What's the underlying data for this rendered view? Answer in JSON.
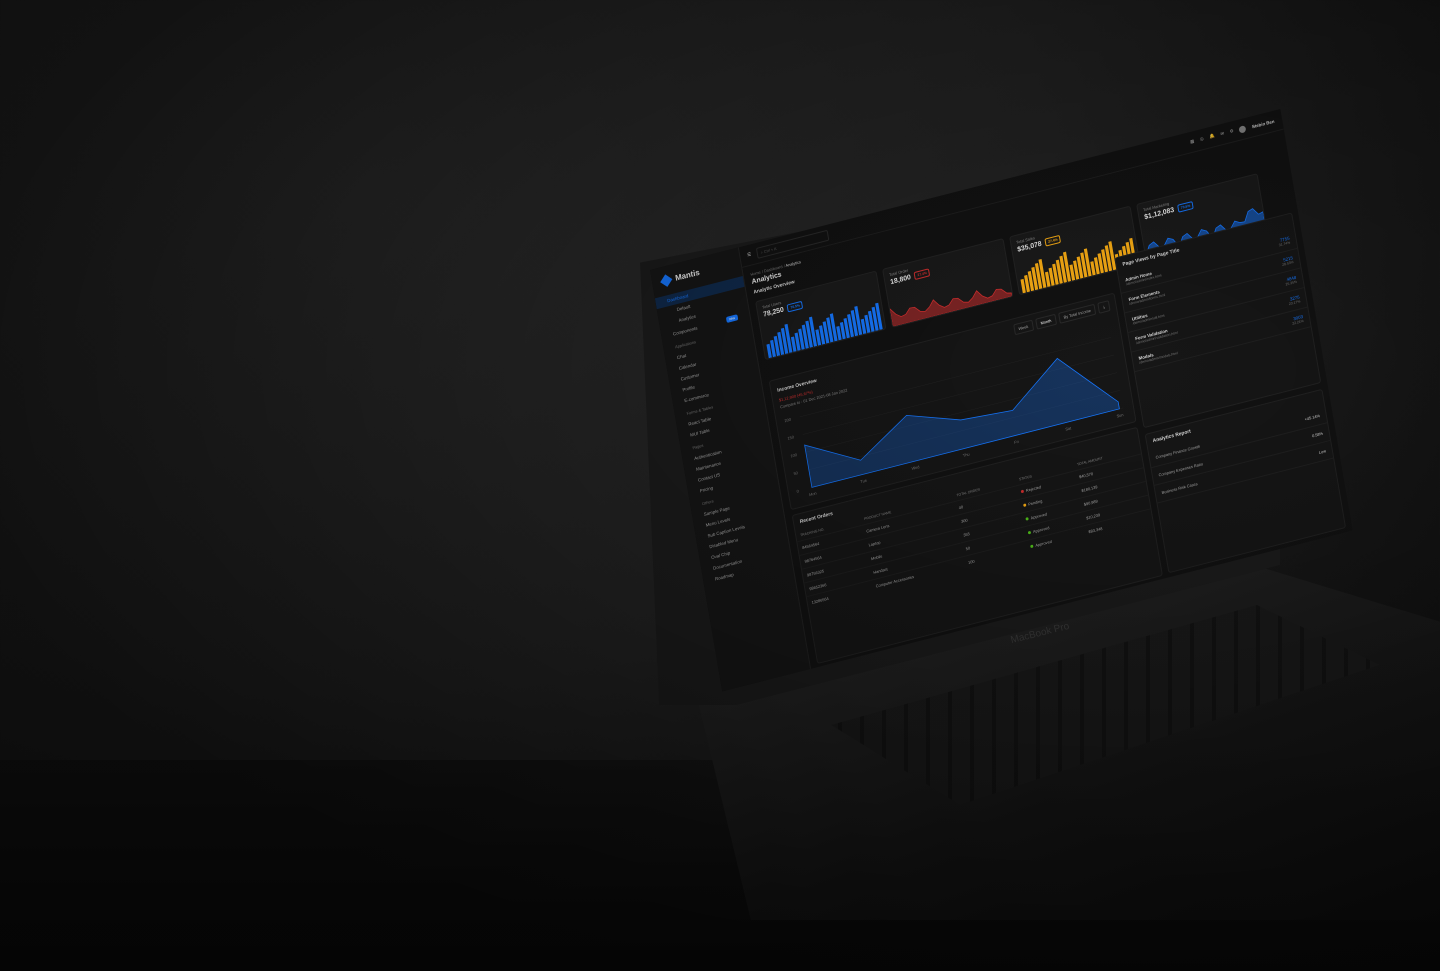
{
  "device": {
    "label": "MacBook Pro"
  },
  "sidebar": {
    "brand": "Mantis",
    "items": [
      {
        "label": "Dashboard",
        "type": "item",
        "active": true
      },
      {
        "label": "Default",
        "type": "sub"
      },
      {
        "label": "Analytics",
        "type": "sub"
      },
      {
        "label": "Components",
        "type": "item",
        "badge": "new"
      },
      {
        "label": "Applications",
        "type": "header"
      },
      {
        "label": "Chat",
        "type": "item"
      },
      {
        "label": "Calendar",
        "type": "item"
      },
      {
        "label": "Customer",
        "type": "item"
      },
      {
        "label": "Profile",
        "type": "item"
      },
      {
        "label": "E-commerce",
        "type": "item"
      },
      {
        "label": "Forms & Tables",
        "type": "header"
      },
      {
        "label": "React Table",
        "type": "item"
      },
      {
        "label": "MUI Table",
        "type": "item"
      },
      {
        "label": "Pages",
        "type": "header"
      },
      {
        "label": "Authentication",
        "type": "item"
      },
      {
        "label": "Maintenance",
        "type": "item"
      },
      {
        "label": "Contact US",
        "type": "item"
      },
      {
        "label": "Pricing",
        "type": "item"
      },
      {
        "label": "Others",
        "type": "header"
      },
      {
        "label": "Sample Page",
        "type": "item"
      },
      {
        "label": "Menu Levels",
        "type": "item"
      },
      {
        "label": "Sub Caption Levels",
        "type": "item"
      },
      {
        "label": "Disabled Menu",
        "type": "item"
      },
      {
        "label": "Oval Chip",
        "type": "item"
      },
      {
        "label": "Documentation",
        "type": "item"
      },
      {
        "label": "Roadmap",
        "type": "item"
      }
    ]
  },
  "topbar": {
    "search_placeholder": "Ctrl + K",
    "user_name": "Stebin Ben"
  },
  "breadcrumb": {
    "home": "Home",
    "parent": "Dashboard",
    "current": "Analytics"
  },
  "page_title": "Analytics",
  "overview": {
    "title": "Analytic Overview",
    "cards": [
      {
        "label": "Total Users",
        "value": "78,250",
        "badge": "70.5%",
        "color": "#1677ff"
      },
      {
        "label": "Total Order",
        "value": "18,800",
        "badge": "27.4%",
        "color": "#d32f2f"
      },
      {
        "label": "Total Sales",
        "value": "$35,078",
        "badge": "27.4%",
        "color": "#faad14"
      },
      {
        "label": "Total Marketing",
        "value": "$1,12,083",
        "badge": "70.5%",
        "color": "#1677ff"
      }
    ]
  },
  "income": {
    "title": "Income Overview",
    "delta": "$1,12,900 (45.67%)",
    "compare": "Compare to : 01 Dec 2021-08 Jan 2022",
    "range_buttons": [
      "Week",
      "Month"
    ],
    "select": "By Total Income",
    "chart_data": {
      "type": "area",
      "x": [
        "Mon",
        "Tue",
        "Wed",
        "Thu",
        "Fri",
        "Sat",
        "Sun"
      ],
      "values": [
        120,
        40,
        130,
        80,
        70,
        180,
        20
      ],
      "ylim": [
        0,
        200
      ],
      "color": "#1677ff"
    }
  },
  "page_views": {
    "title": "Page Views by Page Title",
    "rows": [
      {
        "title": "Admin Home",
        "url": "/demo/admin/index.html",
        "count": "7755",
        "pct": "31.74%"
      },
      {
        "title": "Form Elements",
        "url": "/demo/admin/forms.html",
        "count": "5215",
        "pct": "28.53%"
      },
      {
        "title": "Utilities",
        "url": "/demo/admin/util.html",
        "count": "4848",
        "pct": "25.35%"
      },
      {
        "title": "Form Validation",
        "url": "/demo/admin/validation.html",
        "count": "3275",
        "pct": "23.17%"
      },
      {
        "title": "Modals",
        "url": "/demo/admin/modals.html",
        "count": "3003",
        "pct": "22.21%"
      }
    ]
  },
  "report": {
    "title": "Analytics Report",
    "rows": [
      {
        "label": "Company Finance Growth",
        "value": "+45.14%"
      },
      {
        "label": "Company Expenses Ratio",
        "value": "0.58%"
      },
      {
        "label": "Business Risk Cases",
        "value": "Low"
      }
    ]
  },
  "orders": {
    "title": "Recent Orders",
    "columns": [
      "TRACKING NO.",
      "PRODUCT NAME",
      "TOTAL ORDER",
      "STATUS",
      "TOTAL AMOUNT"
    ],
    "rows": [
      [
        "84564564",
        "Camera Lens",
        "40",
        "Rejected",
        "$40,570"
      ],
      [
        "98764564",
        "Laptop",
        "300",
        "Pending",
        "$180,139"
      ],
      [
        "98756325",
        "Mobile",
        "355",
        "Approved",
        "$90,989"
      ],
      [
        "98652366",
        "Handset",
        "50",
        "Approved",
        "$10,239"
      ],
      [
        "13286564",
        "Computer Accessories",
        "100",
        "Approved",
        "$83,348"
      ]
    ],
    "status_colors": {
      "Rejected": "#d32f2f",
      "Pending": "#faad14",
      "Approved": "#52c41a"
    }
  }
}
